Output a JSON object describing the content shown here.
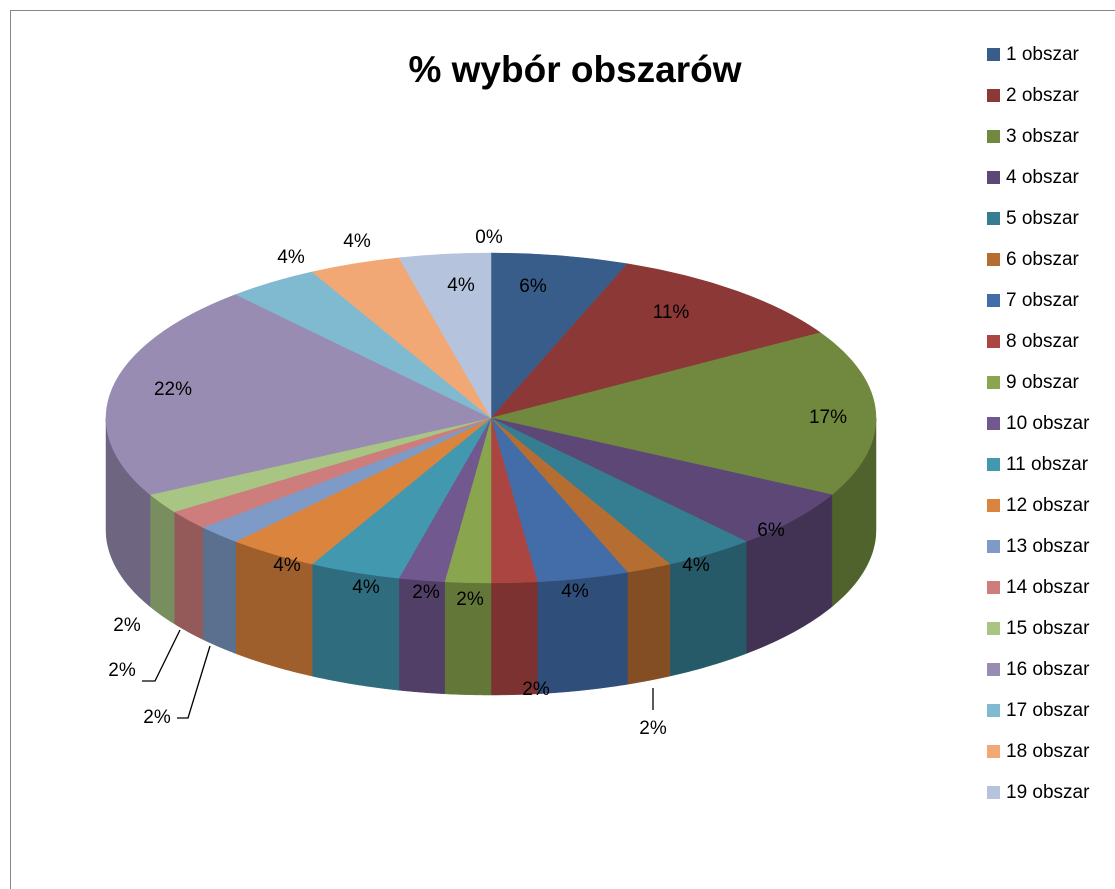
{
  "chart_data": {
    "type": "pie3d",
    "title": "% wybór obszarów",
    "categories": [
      "1 obszar",
      "2 obszar",
      "3 obszar",
      "4 obszar",
      "5 obszar",
      "6 obszar",
      "7 obszar",
      "8 obszar",
      "9 obszar",
      "10 obszar",
      "11 obszar",
      "12 obszar",
      "13 obszar",
      "14 obszar",
      "15 obszar",
      "16 obszar",
      "17 obszar",
      "18 obszar",
      "19 obszar",
      null
    ],
    "values": [
      6,
      11,
      17,
      6,
      4,
      2,
      4,
      2,
      2,
      2,
      4,
      4,
      2,
      2,
      2,
      22,
      4,
      4,
      4,
      0
    ],
    "value_labels": [
      "6%",
      "11%",
      "17%",
      "6%",
      "4%",
      "2%",
      "4%",
      "2%",
      "2%",
      "2%",
      "4%",
      "4%",
      "2%",
      "2%",
      "2%",
      "22%",
      "4%",
      "4%",
      "4%",
      "0%"
    ],
    "colors": [
      "#385d8a",
      "#8c3836",
      "#71893f",
      "#5c4776",
      "#357d91",
      "#b66d31",
      "#426da9",
      "#ab4542",
      "#89a54e",
      "#71588f",
      "#4198af",
      "#db843d",
      "#7e9ac7",
      "#cd7d7b",
      "#a8c584",
      "#998cb3",
      "#7fbad0",
      "#f2a874",
      "#b6c3dc",
      "#4f81bd"
    ],
    "legend": "right"
  }
}
